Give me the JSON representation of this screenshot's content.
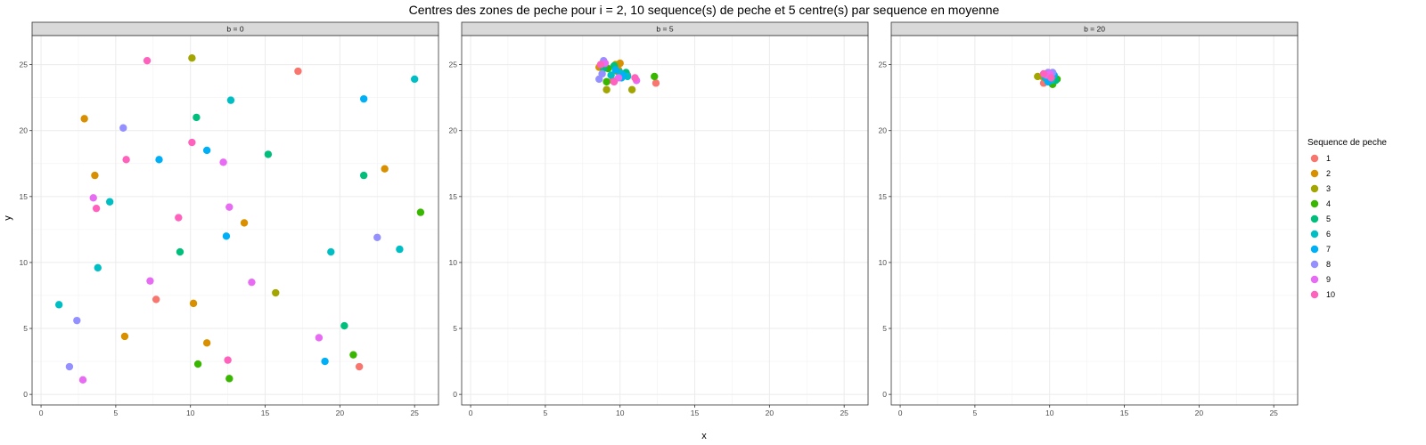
{
  "chart_data": {
    "type": "scatter",
    "title": "Centres des zones de peche pour i = 2, 10 sequence(s) de peche et 5 centre(s) par sequence en moyenne",
    "xlabel": "x",
    "ylabel": "y",
    "xlim": [
      -0.6,
      26.6
    ],
    "ylim": [
      -0.8,
      27.2
    ],
    "x_ticks": [
      0,
      5,
      10,
      15,
      20,
      25
    ],
    "y_ticks": [
      0,
      5,
      10,
      15,
      20,
      25
    ],
    "grid": true,
    "legend_position": "right",
    "legend": {
      "title": "Sequence de peche",
      "entries": [
        {
          "label": "1",
          "color": "#F8766D"
        },
        {
          "label": "2",
          "color": "#D89000"
        },
        {
          "label": "3",
          "color": "#A3A500"
        },
        {
          "label": "4",
          "color": "#39B600"
        },
        {
          "label": "5",
          "color": "#00BF7D"
        },
        {
          "label": "6",
          "color": "#00BFC4"
        },
        {
          "label": "7",
          "color": "#00B0F6"
        },
        {
          "label": "8",
          "color": "#9590FF"
        },
        {
          "label": "9",
          "color": "#E76BF3"
        },
        {
          "label": "10",
          "color": "#FF62BC"
        }
      ]
    },
    "panels": [
      {
        "strip": "b = 0",
        "series": [
          {
            "name": "1",
            "points": [
              [
                17.2,
                24.5
              ],
              [
                7.7,
                7.2
              ],
              [
                21.3,
                2.1
              ]
            ]
          },
          {
            "name": "2",
            "points": [
              [
                2.9,
                20.9
              ],
              [
                3.6,
                16.6
              ],
              [
                23.0,
                17.1
              ],
              [
                13.6,
                13.0
              ],
              [
                10.2,
                6.9
              ],
              [
                5.6,
                4.4
              ],
              [
                11.1,
                3.9
              ]
            ]
          },
          {
            "name": "3",
            "points": [
              [
                10.1,
                25.5
              ],
              [
                15.7,
                7.7
              ]
            ]
          },
          {
            "name": "4",
            "points": [
              [
                25.4,
                13.8
              ],
              [
                10.5,
                2.3
              ],
              [
                20.9,
                3.0
              ],
              [
                12.6,
                1.2
              ]
            ]
          },
          {
            "name": "5",
            "points": [
              [
                10.4,
                21.0
              ],
              [
                15.2,
                18.2
              ],
              [
                21.6,
                16.6
              ],
              [
                9.3,
                10.8
              ],
              [
                20.3,
                5.2
              ]
            ]
          },
          {
            "name": "6",
            "points": [
              [
                25.0,
                23.9
              ],
              [
                12.7,
                22.3
              ],
              [
                4.6,
                14.6
              ],
              [
                19.4,
                10.8
              ],
              [
                24.0,
                11.0
              ],
              [
                3.8,
                9.6
              ],
              [
                1.2,
                6.8
              ]
            ]
          },
          {
            "name": "7",
            "points": [
              [
                21.6,
                22.4
              ],
              [
                11.1,
                18.5
              ],
              [
                7.9,
                17.8
              ],
              [
                12.4,
                12.0
              ],
              [
                19.0,
                2.5
              ]
            ]
          },
          {
            "name": "8",
            "points": [
              [
                5.5,
                20.2
              ],
              [
                22.5,
                11.9
              ],
              [
                2.4,
                5.6
              ],
              [
                1.9,
                2.1
              ]
            ]
          },
          {
            "name": "9",
            "points": [
              [
                12.2,
                17.6
              ],
              [
                3.5,
                14.9
              ],
              [
                12.6,
                14.2
              ],
              [
                7.3,
                8.6
              ],
              [
                14.1,
                8.5
              ],
              [
                18.6,
                4.3
              ],
              [
                2.8,
                1.1
              ]
            ]
          },
          {
            "name": "10",
            "points": [
              [
                7.1,
                25.3
              ],
              [
                10.1,
                19.1
              ],
              [
                5.7,
                17.8
              ],
              [
                3.7,
                14.1
              ],
              [
                9.2,
                13.4
              ],
              [
                12.5,
                2.6
              ]
            ]
          }
        ]
      },
      {
        "strip": "b = 5",
        "series": [
          {
            "name": "1",
            "points": [
              [
                12.4,
                23.6
              ],
              [
                10.5,
                24.2
              ],
              [
                9.5,
                23.8
              ]
            ]
          },
          {
            "name": "2",
            "points": [
              [
                10.0,
                25.1
              ],
              [
                9.9,
                24.6
              ],
              [
                8.6,
                24.8
              ]
            ]
          },
          {
            "name": "3",
            "points": [
              [
                9.1,
                23.1
              ],
              [
                10.8,
                23.1
              ],
              [
                9.8,
                24.5
              ],
              [
                9.7,
                25.0
              ]
            ]
          },
          {
            "name": "4",
            "points": [
              [
                12.3,
                24.1
              ],
              [
                9.1,
                23.7
              ],
              [
                9.2,
                24.7
              ]
            ]
          },
          {
            "name": "5",
            "points": [
              [
                8.9,
                24.7
              ],
              [
                9.6,
                24.9
              ],
              [
                10.4,
                24.4
              ]
            ]
          },
          {
            "name": "6",
            "points": [
              [
                9.4,
                24.2
              ],
              [
                10.5,
                24.1
              ],
              [
                10.0,
                24.4
              ]
            ]
          },
          {
            "name": "7",
            "points": [
              [
                10.1,
                24.0
              ],
              [
                9.7,
                24.6
              ],
              [
                10.2,
                24.2
              ]
            ]
          },
          {
            "name": "8",
            "points": [
              [
                8.8,
                24.3
              ],
              [
                8.6,
                23.9
              ],
              [
                8.9,
                25.3
              ]
            ]
          },
          {
            "name": "9",
            "points": [
              [
                9.0,
                25.1
              ],
              [
                11.1,
                23.8
              ],
              [
                9.9,
                24.0
              ]
            ]
          },
          {
            "name": "10",
            "points": [
              [
                8.7,
                25.0
              ],
              [
                11.0,
                24.0
              ],
              [
                9.6,
                23.7
              ]
            ]
          }
        ]
      },
      {
        "strip": "b = 20",
        "series": [
          {
            "name": "1",
            "points": [
              [
                9.6,
                23.6
              ],
              [
                10.0,
                23.9
              ]
            ]
          },
          {
            "name": "2",
            "points": [
              [
                9.5,
                24.1
              ],
              [
                9.9,
                24.3
              ]
            ]
          },
          {
            "name": "3",
            "points": [
              [
                9.2,
                24.1
              ],
              [
                10.3,
                23.9
              ]
            ]
          },
          {
            "name": "4",
            "points": [
              [
                10.2,
                23.5
              ],
              [
                10.5,
                23.9
              ]
            ]
          },
          {
            "name": "5",
            "points": [
              [
                9.9,
                24.1
              ],
              [
                10.4,
                23.8
              ]
            ]
          },
          {
            "name": "6",
            "points": [
              [
                10.1,
                23.8
              ],
              [
                9.7,
                24.0
              ]
            ]
          },
          {
            "name": "7",
            "points": [
              [
                9.9,
                23.7
              ],
              [
                10.3,
                24.2
              ]
            ]
          },
          {
            "name": "8",
            "points": [
              [
                10.2,
                24.4
              ],
              [
                9.9,
                24.4
              ]
            ]
          },
          {
            "name": "9",
            "points": [
              [
                9.8,
                24.2
              ],
              [
                10.0,
                24.3
              ]
            ]
          },
          {
            "name": "10",
            "points": [
              [
                9.6,
                24.3
              ],
              [
                10.1,
                24.0
              ]
            ]
          }
        ]
      }
    ]
  }
}
